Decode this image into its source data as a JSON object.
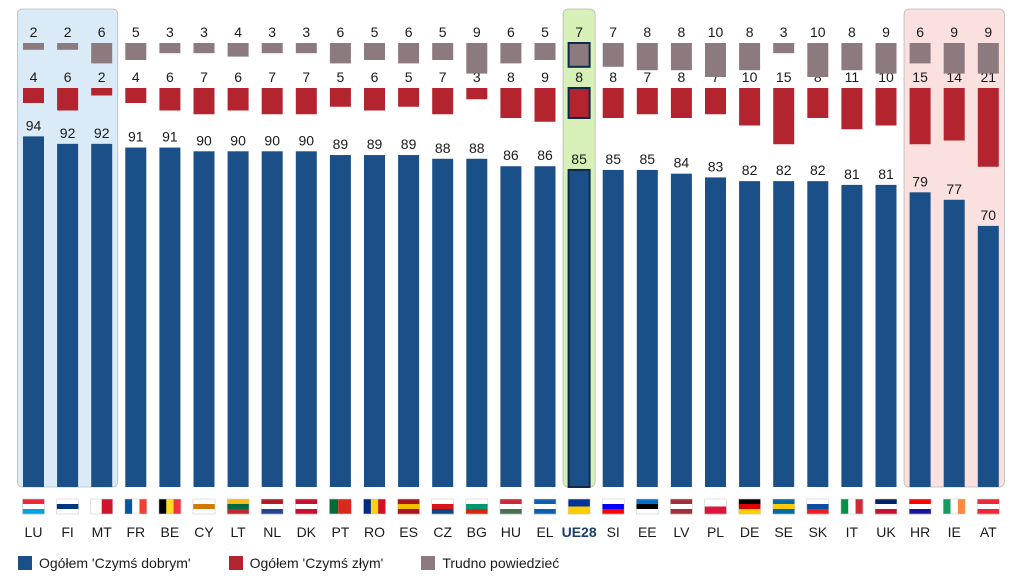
{
  "chart_data": {
    "type": "bar",
    "stacking": "separate-panels",
    "categories": [
      "LU",
      "FI",
      "MT",
      "FR",
      "BE",
      "CY",
      "LT",
      "NL",
      "DK",
      "PT",
      "RO",
      "ES",
      "CZ",
      "BG",
      "HU",
      "EL",
      "UE28",
      "SI",
      "EE",
      "LV",
      "PL",
      "DE",
      "SE",
      "SK",
      "IT",
      "UK",
      "HR",
      "IE",
      "AT"
    ],
    "series": [
      {
        "name": "Ogółem 'Czymś dobrym'",
        "color": "#1b4f88",
        "values": [
          94,
          92,
          92,
          91,
          91,
          90,
          90,
          90,
          90,
          89,
          89,
          89,
          88,
          88,
          86,
          86,
          85,
          85,
          85,
          84,
          83,
          82,
          82,
          82,
          81,
          81,
          79,
          77,
          70
        ]
      },
      {
        "name": "Ogółem 'Czymś złym'",
        "color": "#b3242f",
        "values": [
          4,
          6,
          2,
          4,
          6,
          7,
          6,
          7,
          7,
          5,
          6,
          5,
          7,
          3,
          8,
          9,
          8,
          8,
          7,
          8,
          7,
          10,
          15,
          8,
          11,
          10,
          15,
          14,
          21
        ]
      },
      {
        "name": "Trudno powiedzieć",
        "color": "#8c7a7f",
        "values": [
          2,
          2,
          6,
          5,
          3,
          3,
          4,
          3,
          3,
          6,
          5,
          6,
          5,
          9,
          6,
          5,
          7,
          7,
          8,
          8,
          10,
          8,
          3,
          10,
          8,
          9,
          6,
          9,
          9
        ]
      }
    ],
    "highlight_groups": [
      {
        "categories": [
          "LU",
          "FI",
          "MT"
        ],
        "color": "#dbeaf7"
      },
      {
        "categories": [
          "UE28"
        ],
        "color": "#d6f0b8"
      },
      {
        "categories": [
          "HR",
          "IE",
          "AT"
        ],
        "color": "#fbe0e0"
      }
    ],
    "average_category": "UE28",
    "flag_colors": {
      "LU": [
        "#ed2939",
        "#ffffff",
        "#00a1de"
      ],
      "FI": [
        "#ffffff",
        "#003580",
        "#ffffff"
      ],
      "MT": [
        "#ffffff",
        "#cf142b"
      ],
      "FR": [
        "#0055a4",
        "#ffffff",
        "#ef4135"
      ],
      "BE": [
        "#000000",
        "#fdda24",
        "#ef3340"
      ],
      "CY": [
        "#ffffff",
        "#d57800",
        "#ffffff"
      ],
      "LT": [
        "#fdb913",
        "#006a44",
        "#c1272d"
      ],
      "NL": [
        "#ae1c28",
        "#ffffff",
        "#21468b"
      ],
      "DK": [
        "#c8102e",
        "#ffffff",
        "#c8102e"
      ],
      "PT": [
        "#046a38",
        "#da291c"
      ],
      "RO": [
        "#002b7f",
        "#fcd116",
        "#ce1126"
      ],
      "ES": [
        "#aa151b",
        "#f1bf00",
        "#aa151b"
      ],
      "CZ": [
        "#ffffff",
        "#d7141a",
        "#11457e"
      ],
      "BG": [
        "#ffffff",
        "#00966e",
        "#d62612"
      ],
      "HU": [
        "#ce2939",
        "#ffffff",
        "#477050"
      ],
      "EL": [
        "#0d5eaf",
        "#ffffff",
        "#0d5eaf"
      ],
      "UE28": [
        "#003399",
        "#ffcc00"
      ],
      "SI": [
        "#ffffff",
        "#0000ff",
        "#ff0000"
      ],
      "EE": [
        "#0072ce",
        "#000000",
        "#ffffff"
      ],
      "LV": [
        "#9e3039",
        "#ffffff",
        "#9e3039"
      ],
      "PL": [
        "#ffffff",
        "#dc143c"
      ],
      "DE": [
        "#000000",
        "#dd0000",
        "#ffce00"
      ],
      "SE": [
        "#006aa7",
        "#fecc00",
        "#006aa7"
      ],
      "SK": [
        "#ffffff",
        "#0b4ea2",
        "#ee1c25"
      ],
      "IT": [
        "#009246",
        "#ffffff",
        "#ce2b37"
      ],
      "UK": [
        "#012169",
        "#ffffff",
        "#c8102e"
      ],
      "HR": [
        "#ff0000",
        "#ffffff",
        "#171796"
      ],
      "IE": [
        "#169b62",
        "#ffffff",
        "#ff883e"
      ],
      "AT": [
        "#ed2939",
        "#ffffff",
        "#ed2939"
      ]
    }
  },
  "legend": [
    {
      "label": "Ogółem 'Czymś dobrym'",
      "color": "#1b4f88"
    },
    {
      "label": "Ogółem 'Czymś złym'",
      "color": "#b3242f"
    },
    {
      "label": "Trudno powiedzieć",
      "color": "#8c7a7f"
    }
  ]
}
